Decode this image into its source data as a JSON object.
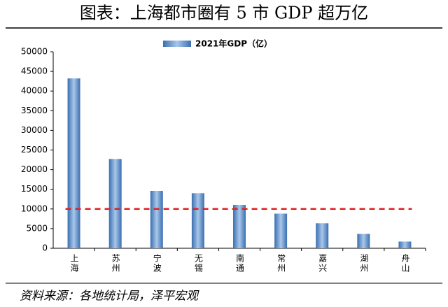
{
  "chart_data": {
    "type": "bar",
    "title": "图表：上海都市圈有 5 市 GDP 超万亿",
    "legend_label": "2021年GDP（亿）",
    "source": "资料来源：各地统计局，泽平宏观",
    "categories": [
      "上海",
      "苏州",
      "宁波",
      "无锡",
      "南通",
      "常州",
      "嘉兴",
      "湖州",
      "舟山"
    ],
    "series": [
      {
        "name": "2021年GDP（亿）",
        "color": "#4f81bd",
        "values": [
          43215,
          22718,
          14595,
          14003,
          11027,
          8808,
          6355,
          3645,
          1703
        ]
      }
    ],
    "reference_line": {
      "value": 10000,
      "color": "#e02020"
    },
    "ylim": [
      0,
      50000
    ],
    "yticks": [
      0,
      5000,
      10000,
      15000,
      20000,
      25000,
      30000,
      35000,
      40000,
      45000,
      50000
    ]
  }
}
